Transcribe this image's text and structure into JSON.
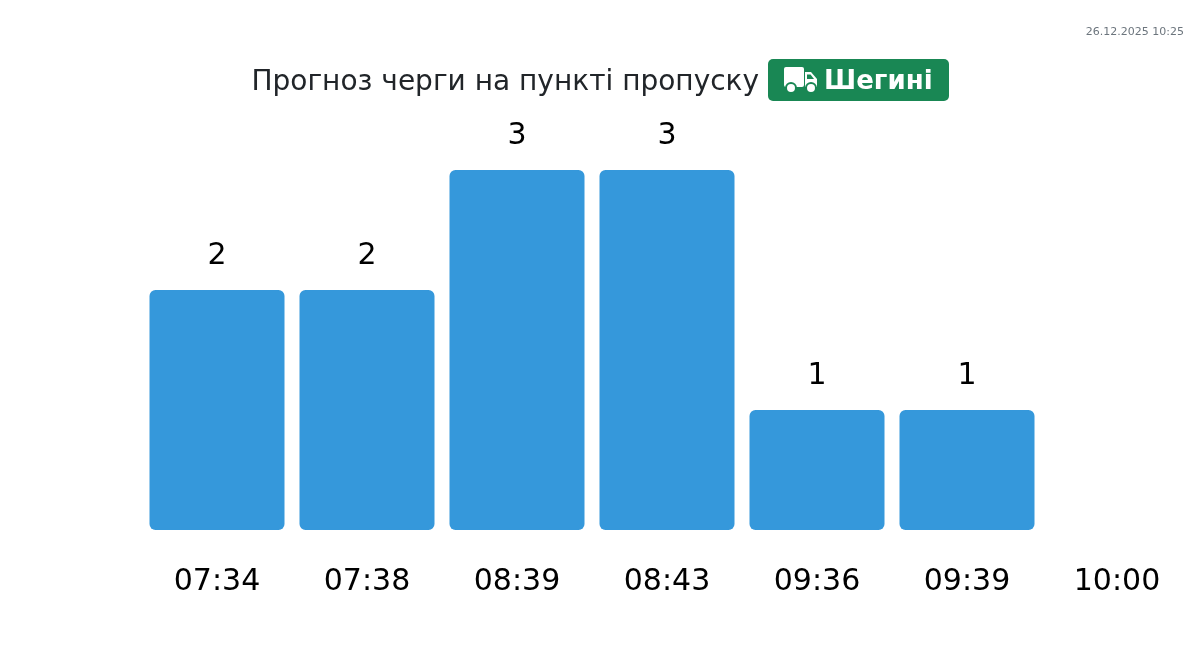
{
  "chart_data": {
    "type": "bar",
    "title": "Прогноз черги на пункті пропуску",
    "subtitle": "Шегині",
    "annotations": [
      "26.12.2025 10:25"
    ],
    "categories": [
      "07:34",
      "07:38",
      "08:39",
      "08:43",
      "09:36",
      "09:39",
      "10:00"
    ],
    "values": [
      2,
      2,
      3,
      3,
      1,
      1,
      null
    ],
    "color": "#3598db",
    "data_labels": true
  }
}
